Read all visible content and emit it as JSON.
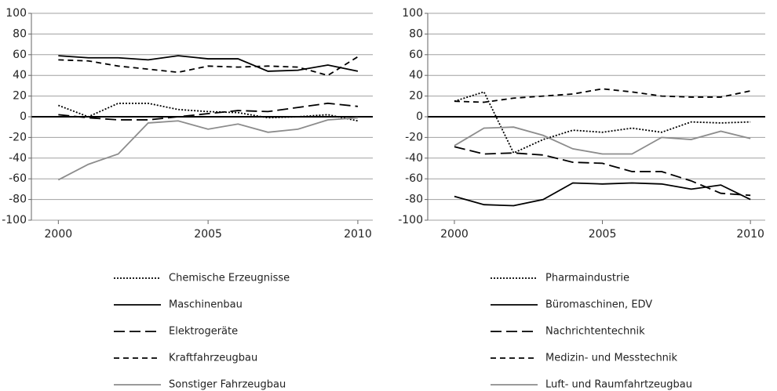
{
  "chart_data": [
    {
      "type": "line",
      "xlim": [
        1999.1,
        2010.5
      ],
      "xticks": [
        2000,
        2005,
        2010
      ],
      "ylim": [
        -100,
        100
      ],
      "yticks": [
        -100,
        -80,
        -60,
        -40,
        -20,
        0,
        20,
        40,
        60,
        80,
        100
      ],
      "grid": true,
      "x": [
        2000,
        2001,
        2002,
        2003,
        2004,
        2005,
        2006,
        2007,
        2008,
        2009,
        2010
      ],
      "series": [
        {
          "name": "Chemische Erzeugnisse",
          "color": "#000000",
          "dash": "dotted",
          "values": [
            11,
            0,
            13,
            13,
            7,
            5,
            4,
            -1,
            0,
            2,
            -4
          ]
        },
        {
          "name": "Maschinenbau",
          "color": "#000000",
          "dash": "solid",
          "values": [
            59,
            57,
            57,
            55,
            59,
            56,
            56,
            44,
            45,
            50,
            44
          ]
        },
        {
          "name": "Elektrogeräte",
          "color": "#000000",
          "dash": "long",
          "values": [
            2,
            -1,
            -3,
            -3,
            0,
            3,
            6,
            5,
            9,
            13,
            10
          ]
        },
        {
          "name": "Kraftfahrzeugbau",
          "color": "#000000",
          "dash": "short",
          "values": [
            55,
            54,
            49,
            46,
            43,
            49,
            48,
            49,
            48,
            40,
            58
          ]
        },
        {
          "name": "Sonstiger Fahrzeugbau",
          "color": "#8c8c8c",
          "dash": "solid",
          "values": [
            -61,
            -46,
            -36,
            -6,
            -4,
            -12,
            -7,
            -15,
            -12,
            -3,
            -1
          ]
        }
      ]
    },
    {
      "type": "line",
      "xlim": [
        1999.1,
        2010.5
      ],
      "xticks": [
        2000,
        2005,
        2010
      ],
      "ylim": [
        -100,
        100
      ],
      "yticks": [
        -100,
        -80,
        -60,
        -40,
        -20,
        0,
        20,
        40,
        60,
        80,
        100
      ],
      "grid": true,
      "x": [
        2000,
        2001,
        2002,
        2003,
        2004,
        2005,
        2006,
        2007,
        2008,
        2009,
        2010
      ],
      "series": [
        {
          "name": "Pharmaindustrie",
          "color": "#000000",
          "dash": "dotted",
          "values": [
            15,
            24,
            -35,
            -22,
            -13,
            -15,
            -11,
            -15,
            -5,
            -6,
            -5
          ]
        },
        {
          "name": "Büromaschinen, EDV",
          "color": "#000000",
          "dash": "solid",
          "values": [
            -77,
            -85,
            -86,
            -80,
            -64,
            -65,
            -64,
            -65,
            -70,
            -66,
            -80
          ]
        },
        {
          "name": "Nachrichtentechnik",
          "color": "#000000",
          "dash": "long",
          "values": [
            -29,
            -36,
            -35,
            -37,
            -44,
            -45,
            -53,
            -53,
            -62,
            -74,
            -76
          ]
        },
        {
          "name": "Medizin- und Messtechnik",
          "color": "#000000",
          "dash": "short",
          "values": [
            15,
            14,
            18,
            20,
            22,
            27,
            24,
            20,
            19,
            19,
            25
          ]
        },
        {
          "name": "Luft- und Raumfahrtzeugbau",
          "color": "#8c8c8c",
          "dash": "solid",
          "values": [
            -28,
            -11,
            -10,
            -18,
            -31,
            -36,
            -36,
            -20,
            -22,
            -14,
            -21
          ]
        }
      ]
    }
  ]
}
